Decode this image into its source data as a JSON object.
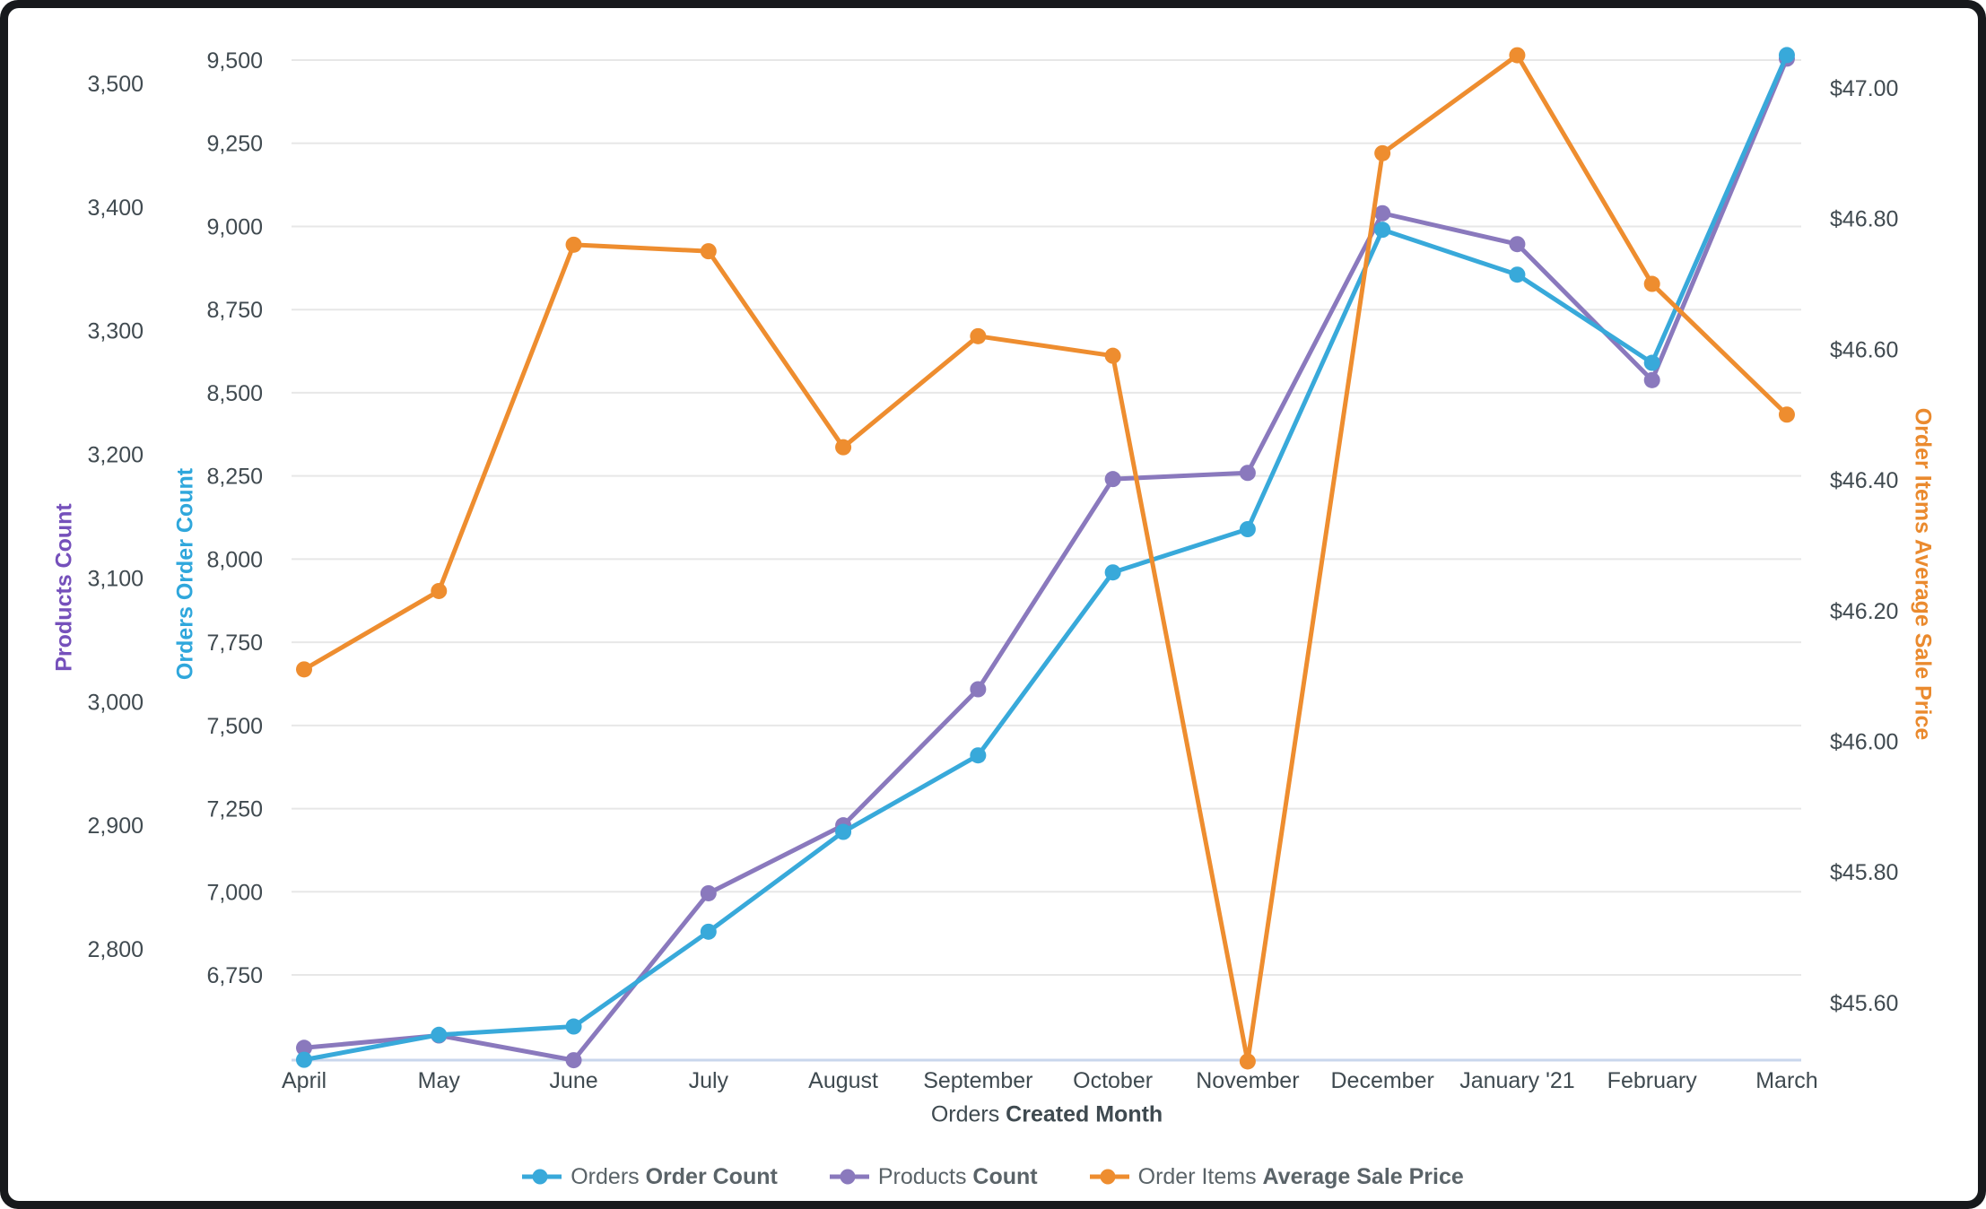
{
  "window": {
    "frame_color": "#17191c",
    "card_background": "#ffffff"
  },
  "chart_data": {
    "type": "line",
    "categories": [
      "April",
      "May",
      "June",
      "July",
      "August",
      "September",
      "October",
      "November",
      "December",
      "January '21",
      "February",
      "March"
    ],
    "series": [
      {
        "name": "Orders Order Count",
        "label_regular": "Orders",
        "label_bold": "Order Count",
        "color": "#38a9da",
        "axis": "orders",
        "values": [
          6495,
          6570,
          6595,
          6880,
          7180,
          7410,
          7960,
          8090,
          8990,
          8855,
          8590,
          9515
        ]
      },
      {
        "name": "Products Count",
        "label_regular": "Products",
        "label_bold": "Count",
        "color": "#8a79bd",
        "axis": "products",
        "values": [
          2720,
          2730,
          2710,
          2845,
          2900,
          3010,
          3180,
          3185,
          3395,
          3370,
          3260,
          3520
        ]
      },
      {
        "name": "Order Items Average Sale Price",
        "label_regular": "Order Items",
        "label_bold": "Average Sale Price",
        "color": "#ee8d2f",
        "axis": "price",
        "values": [
          46.11,
          46.23,
          46.76,
          46.75,
          46.45,
          46.62,
          46.59,
          45.51,
          46.9,
          47.05,
          46.7,
          46.5
        ]
      }
    ],
    "axes": {
      "products": {
        "label": "Products Count",
        "color": "#7550bb",
        "tick_labels": [
          "3,500",
          "3,400",
          "3,300",
          "3,200",
          "3,100",
          "3,000",
          "2,900",
          "2,800"
        ],
        "tick_values": [
          3500,
          3400,
          3300,
          3200,
          3100,
          3000,
          2900,
          2800
        ]
      },
      "orders": {
        "label": "Orders Order Count",
        "color": "#2fa7dc",
        "tick_labels": [
          "9,500",
          "9,250",
          "9,000",
          "8,750",
          "8,500",
          "8,250",
          "8,000",
          "7,750",
          "7,500",
          "7,250",
          "7,000",
          "6,750"
        ],
        "tick_values": [
          9500,
          9250,
          9000,
          8750,
          8500,
          8250,
          8000,
          7750,
          7500,
          7250,
          7000,
          6750
        ]
      },
      "price": {
        "label": "Order Items Average Sale Price",
        "color": "#ea8a2e",
        "tick_labels": [
          "$47.00",
          "$46.80",
          "$46.60",
          "$46.40",
          "$46.20",
          "$46.00",
          "$45.80",
          "$45.60"
        ],
        "tick_values": [
          47.0,
          46.8,
          46.6,
          46.4,
          46.2,
          46.0,
          45.8,
          45.6
        ]
      }
    },
    "x_axis": {
      "title_regular": "Orders",
      "title_bold": "Created Month",
      "tick_color": "#3f4a50"
    },
    "grid": {
      "color": "#e7e7e7",
      "baseline_color": "#c9d6ec"
    },
    "tick_text_color": "#404a50",
    "legend_position": "bottom",
    "legend_text_color": "#5a6368"
  }
}
